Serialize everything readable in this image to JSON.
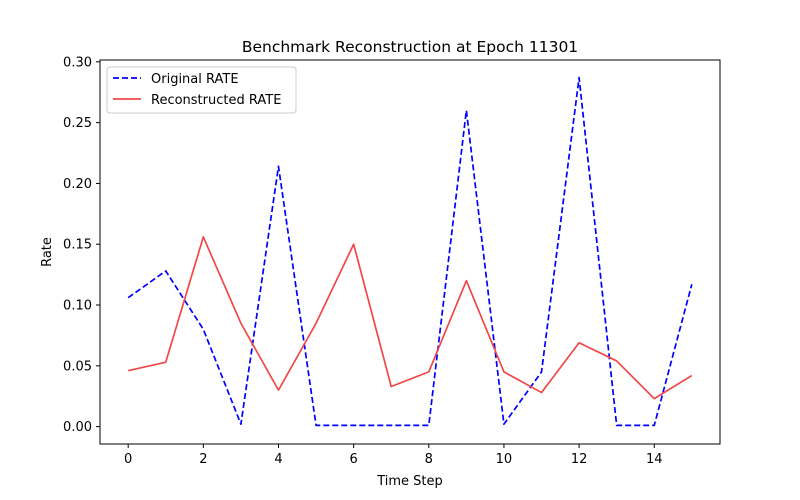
{
  "chart_data": {
    "type": "line",
    "title": "Benchmark Reconstruction at Epoch 11301",
    "xlabel": "Time Step",
    "ylabel": "Rate",
    "xlim": [
      -0.75,
      15.75
    ],
    "ylim": [
      -0.0143,
      0.3015
    ],
    "xticks": [
      0,
      2,
      4,
      6,
      8,
      10,
      12,
      14
    ],
    "yticks": [
      0.0,
      0.05,
      0.1,
      0.15,
      0.2,
      0.25,
      0.3
    ],
    "ytick_labels": [
      "0.00",
      "0.05",
      "0.10",
      "0.15",
      "0.20",
      "0.25",
      "0.30"
    ],
    "grid": false,
    "legend_position": "top-left",
    "x": [
      0,
      1,
      2,
      3,
      4,
      5,
      6,
      7,
      8,
      9,
      10,
      11,
      12,
      13,
      14,
      15
    ],
    "series": [
      {
        "name": "Original RATE",
        "color": "#0000ff",
        "style": "dashed",
        "values": [
          0.106,
          0.128,
          0.08,
          0.002,
          0.214,
          0.001,
          0.001,
          0.001,
          0.001,
          0.26,
          0.002,
          0.045,
          0.287,
          0.001,
          0.001,
          0.117
        ]
      },
      {
        "name": "Reconstructed RATE",
        "color": "#f04848",
        "style": "solid",
        "values": [
          0.046,
          0.053,
          0.156,
          0.085,
          0.03,
          0.085,
          0.15,
          0.033,
          0.045,
          0.12,
          0.045,
          0.028,
          0.069,
          0.054,
          0.023,
          0.042
        ]
      }
    ]
  }
}
